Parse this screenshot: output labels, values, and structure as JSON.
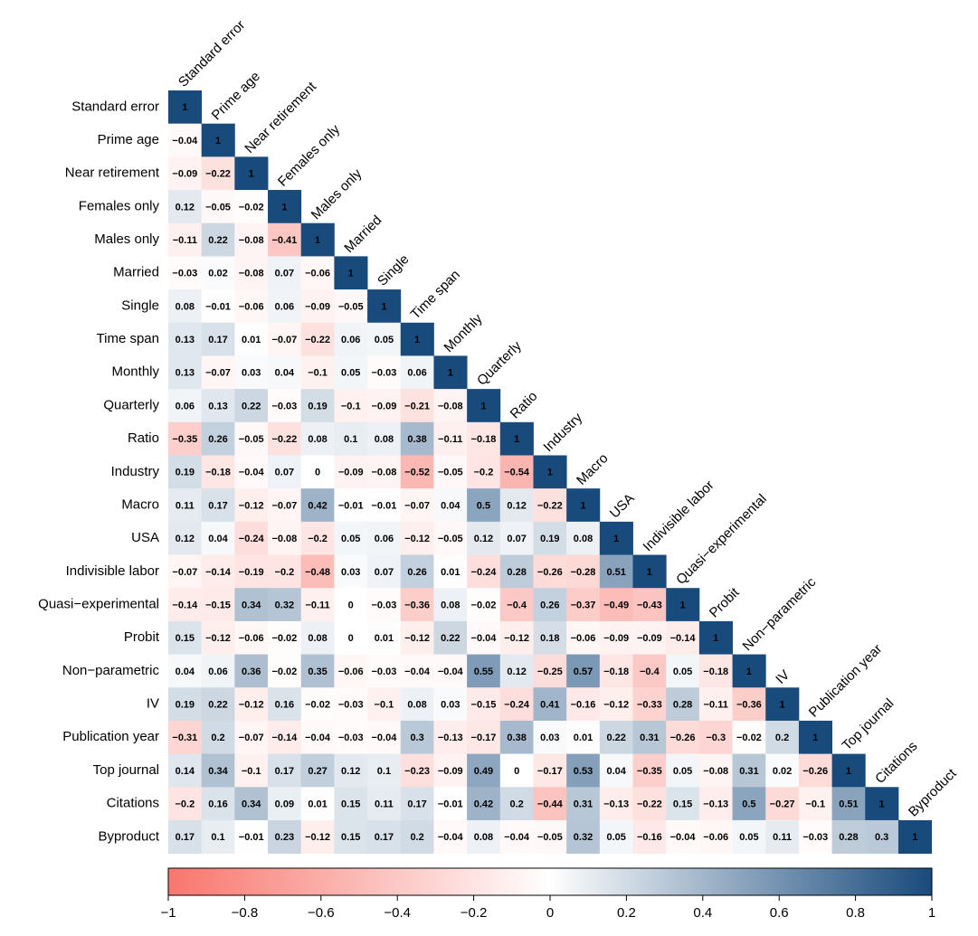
{
  "chart_data": {
    "type": "heatmap",
    "variables": [
      "Standard error",
      "Prime age",
      "Near retirement",
      "Females only",
      "Males only",
      "Married",
      "Single",
      "Time span",
      "Monthly",
      "Quarterly",
      "Ratio",
      "Industry",
      "Macro",
      "USA",
      "Indivisible labor",
      "Quasi−experimental",
      "Probit",
      "Non−parametric",
      "IV",
      "Publication year",
      "Top journal",
      "Citations",
      "Byproduct"
    ],
    "values": [
      [
        1
      ],
      [
        -0.04,
        1
      ],
      [
        -0.09,
        -0.22,
        1
      ],
      [
        0.12,
        -0.05,
        -0.02,
        1
      ],
      [
        -0.11,
        0.22,
        -0.08,
        -0.41,
        1
      ],
      [
        -0.03,
        0.02,
        -0.08,
        0.07,
        -0.06,
        1
      ],
      [
        0.08,
        -0.01,
        -0.06,
        0.06,
        -0.09,
        -0.05,
        1
      ],
      [
        0.13,
        0.17,
        0.01,
        -0.07,
        -0.22,
        0.06,
        0.05,
        1
      ],
      [
        0.13,
        -0.07,
        0.03,
        0.04,
        -0.1,
        0.05,
        -0.03,
        0.06,
        1
      ],
      [
        0.06,
        0.13,
        0.22,
        -0.03,
        0.19,
        -0.1,
        -0.09,
        -0.21,
        -0.08,
        1
      ],
      [
        -0.35,
        0.26,
        -0.05,
        -0.22,
        0.08,
        0.1,
        0.08,
        0.38,
        -0.11,
        -0.18,
        1
      ],
      [
        0.19,
        -0.18,
        -0.04,
        0.07,
        0,
        -0.09,
        -0.08,
        -0.52,
        -0.05,
        -0.2,
        -0.54,
        1
      ],
      [
        0.11,
        0.17,
        -0.12,
        -0.07,
        0.42,
        -0.01,
        -0.01,
        -0.07,
        0.04,
        0.5,
        0.12,
        -0.22,
        1
      ],
      [
        0.12,
        0.04,
        -0.24,
        -0.08,
        -0.2,
        0.05,
        0.06,
        -0.12,
        -0.05,
        0.12,
        0.07,
        0.19,
        0.08,
        1
      ],
      [
        -0.07,
        -0.14,
        -0.19,
        -0.2,
        -0.48,
        0.03,
        0.07,
        0.26,
        0.01,
        -0.24,
        0.28,
        -0.26,
        -0.28,
        0.51,
        1
      ],
      [
        -0.14,
        -0.15,
        0.34,
        0.32,
        -0.11,
        0,
        -0.03,
        -0.36,
        0.08,
        -0.02,
        -0.4,
        0.26,
        -0.37,
        -0.49,
        -0.43,
        1
      ],
      [
        0.15,
        -0.12,
        -0.06,
        -0.02,
        0.08,
        0,
        0.01,
        -0.12,
        0.22,
        -0.04,
        -0.12,
        0.18,
        -0.06,
        -0.09,
        -0.09,
        -0.14,
        1
      ],
      [
        0.04,
        0.06,
        0.36,
        -0.02,
        0.35,
        -0.06,
        -0.03,
        -0.04,
        -0.04,
        0.55,
        0.12,
        -0.25,
        0.57,
        -0.18,
        -0.4,
        0.05,
        -0.18,
        1
      ],
      [
        0.19,
        0.22,
        -0.12,
        0.16,
        -0.02,
        -0.03,
        -0.1,
        0.08,
        0.03,
        -0.15,
        -0.24,
        0.41,
        -0.16,
        -0.12,
        -0.33,
        0.28,
        -0.11,
        -0.36,
        1
      ],
      [
        -0.31,
        0.2,
        -0.07,
        -0.14,
        -0.04,
        -0.03,
        -0.04,
        0.3,
        -0.13,
        -0.17,
        0.38,
        0.03,
        0.01,
        0.22,
        0.31,
        -0.26,
        -0.3,
        -0.02,
        0.2,
        1
      ],
      [
        0.14,
        0.34,
        -0.1,
        0.17,
        0.27,
        0.12,
        0.1,
        -0.23,
        -0.09,
        0.49,
        0,
        -0.17,
        0.53,
        0.04,
        -0.35,
        0.05,
        -0.08,
        0.31,
        0.02,
        -0.26,
        1
      ],
      [
        -0.2,
        0.16,
        0.34,
        0.09,
        0.01,
        0.15,
        0.11,
        0.17,
        -0.01,
        0.42,
        0.2,
        -0.44,
        0.31,
        -0.13,
        -0.22,
        0.15,
        -0.13,
        0.5,
        -0.27,
        -0.1,
        0.51,
        1
      ],
      [
        0.17,
        0.1,
        -0.01,
        0.23,
        -0.12,
        0.15,
        0.17,
        0.2,
        -0.04,
        0.08,
        -0.04,
        -0.05,
        0.32,
        0.05,
        -0.16,
        -0.04,
        -0.06,
        0.05,
        0.11,
        -0.03,
        0.28,
        0.3,
        1
      ]
    ],
    "value_labels": [
      [
        "1"
      ],
      [
        "−0.04",
        "1"
      ],
      [
        "−0.09",
        "−0.22",
        "1"
      ],
      [
        "0.12",
        "−0.05",
        "−0.02",
        "1"
      ],
      [
        "−0.11",
        "0.22",
        "−0.08",
        "−0.41",
        "1"
      ],
      [
        "−0.03",
        "0.02",
        "−0.08",
        "0.07",
        "−0.06",
        "1"
      ],
      [
        "0.08",
        "−0.01",
        "−0.06",
        "0.06",
        "−0.09",
        "−0.05",
        "1"
      ],
      [
        "0.13",
        "0.17",
        "0.01",
        "−0.07",
        "−0.22",
        "0.06",
        "0.05",
        "1"
      ],
      [
        "0.13",
        "−0.07",
        "0.03",
        "0.04",
        "−0.1",
        "0.05",
        "−0.03",
        "0.06",
        "1"
      ],
      [
        "0.06",
        "0.13",
        "0.22",
        "−0.03",
        "0.19",
        "−0.1",
        "−0.09",
        "−0.21",
        "−0.08",
        "1"
      ],
      [
        "−0.35",
        "0.26",
        "−0.05",
        "−0.22",
        "0.08",
        "0.1",
        "0.08",
        "0.38",
        "−0.11",
        "−0.18",
        "1"
      ],
      [
        "0.19",
        "−0.18",
        "−0.04",
        "0.07",
        "0",
        "−0.09",
        "−0.08",
        "−0.52",
        "−0.05",
        "−0.2",
        "−0.54",
        "1"
      ],
      [
        "0.11",
        "0.17",
        "−0.12",
        "−0.07",
        "0.42",
        "−0.01",
        "−0.01",
        "−0.07",
        "0.04",
        "0.5",
        "0.12",
        "−0.22",
        "1"
      ],
      [
        "0.12",
        "0.04",
        "−0.24",
        "−0.08",
        "−0.2",
        "0.05",
        "0.06",
        "−0.12",
        "−0.05",
        "0.12",
        "0.07",
        "0.19",
        "0.08",
        "1"
      ],
      [
        "−0.07",
        "−0.14",
        "−0.19",
        "−0.2",
        "−0.48",
        "0.03",
        "0.07",
        "0.26",
        "0.01",
        "−0.24",
        "0.28",
        "−0.26",
        "−0.28",
        "0.51",
        "1"
      ],
      [
        "−0.14",
        "−0.15",
        "0.34",
        "0.32",
        "−0.11",
        "0",
        "−0.03",
        "−0.36",
        "0.08",
        "−0.02",
        "−0.4",
        "0.26",
        "−0.37",
        "−0.49",
        "−0.43",
        "1"
      ],
      [
        "0.15",
        "−0.12",
        "−0.06",
        "−0.02",
        "0.08",
        "0",
        "0.01",
        "−0.12",
        "0.22",
        "−0.04",
        "−0.12",
        "0.18",
        "−0.06",
        "−0.09",
        "−0.09",
        "−0.14",
        "1"
      ],
      [
        "0.04",
        "0.06",
        "0.36",
        "−0.02",
        "0.35",
        "−0.06",
        "−0.03",
        "−0.04",
        "−0.04",
        "0.55",
        "0.12",
        "−0.25",
        "0.57",
        "−0.18",
        "−0.4",
        "0.05",
        "−0.18",
        "1"
      ],
      [
        "0.19",
        "0.22",
        "−0.12",
        "0.16",
        "−0.02",
        "−0.03",
        "−0.1",
        "0.08",
        "0.03",
        "−0.15",
        "−0.24",
        "0.41",
        "−0.16",
        "−0.12",
        "−0.33",
        "0.28",
        "−0.11",
        "−0.36",
        "1"
      ],
      [
        "−0.31",
        "0.2",
        "−0.07",
        "−0.14",
        "−0.04",
        "−0.03",
        "−0.04",
        "0.3",
        "−0.13",
        "−0.17",
        "0.38",
        "0.03",
        "0.01",
        "0.22",
        "0.31",
        "−0.26",
        "−0.3",
        "−0.02",
        "0.2",
        "1"
      ],
      [
        "0.14",
        "0.34",
        "−0.1",
        "0.17",
        "0.27",
        "0.12",
        "0.1",
        "−0.23",
        "−0.09",
        "0.49",
        "0",
        "−0.17",
        "0.53",
        "0.04",
        "−0.35",
        "0.05",
        "−0.08",
        "0.31",
        "0.02",
        "−0.26",
        "1"
      ],
      [
        "−0.2",
        "0.16",
        "0.34",
        "0.09",
        "0.01",
        "0.15",
        "0.11",
        "0.17",
        "−0.01",
        "0.42",
        "0.2",
        "−0.44",
        "0.31",
        "−0.13",
        "−0.22",
        "0.15",
        "−0.13",
        "0.5",
        "−0.27",
        "−0.1",
        "0.51",
        "1"
      ],
      [
        "0.17",
        "0.1",
        "−0.01",
        "0.23",
        "−0.12",
        "0.15",
        "0.17",
        "0.2",
        "−0.04",
        "0.08",
        "−0.04",
        "−0.05",
        "0.32",
        "0.05",
        "−0.16",
        "−0.04",
        "−0.06",
        "0.05",
        "0.11",
        "−0.03",
        "0.28",
        "0.3",
        "1"
      ]
    ],
    "colors": [
      "#f8766d",
      "#ffffff",
      "#184a7c"
    ],
    "clim": [
      -1,
      1
    ],
    "cticks": [
      {
        "value": -1,
        "label": "−1"
      },
      {
        "value": -0.8,
        "label": "−0.8"
      },
      {
        "value": -0.6,
        "label": "−0.6"
      },
      {
        "value": -0.4,
        "label": "−0.4"
      },
      {
        "value": -0.2,
        "label": "−0.2"
      },
      0,
      0.2,
      0.4,
      0.6,
      0.8,
      1
    ]
  }
}
